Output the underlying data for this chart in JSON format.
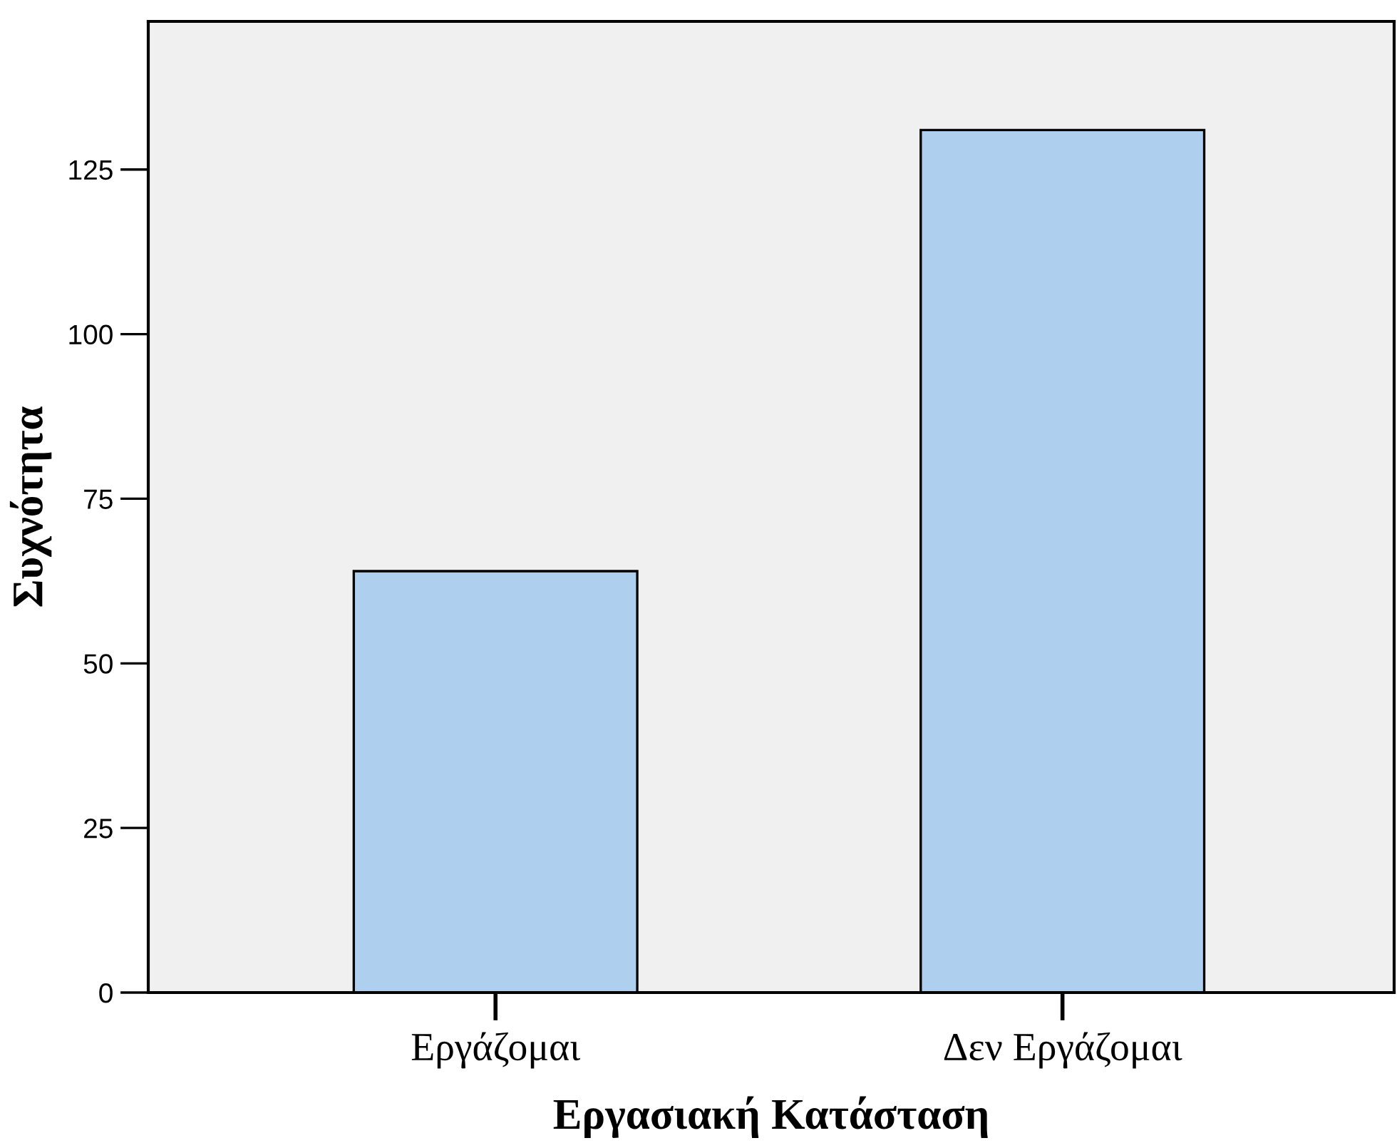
{
  "chart_data": {
    "type": "bar",
    "xlabel": "Εργασιακή Κατάσταση",
    "ylabel": "Συχνότητα",
    "categories": [
      "Εργάζομαι",
      "Δεν Εργάζομαι"
    ],
    "values": [
      64,
      131
    ],
    "color": "#aed0ee",
    "ylim": [
      0,
      147.5
    ],
    "yticks": [
      0,
      25,
      50,
      75,
      100,
      125
    ],
    "grid": false,
    "legend": false
  }
}
